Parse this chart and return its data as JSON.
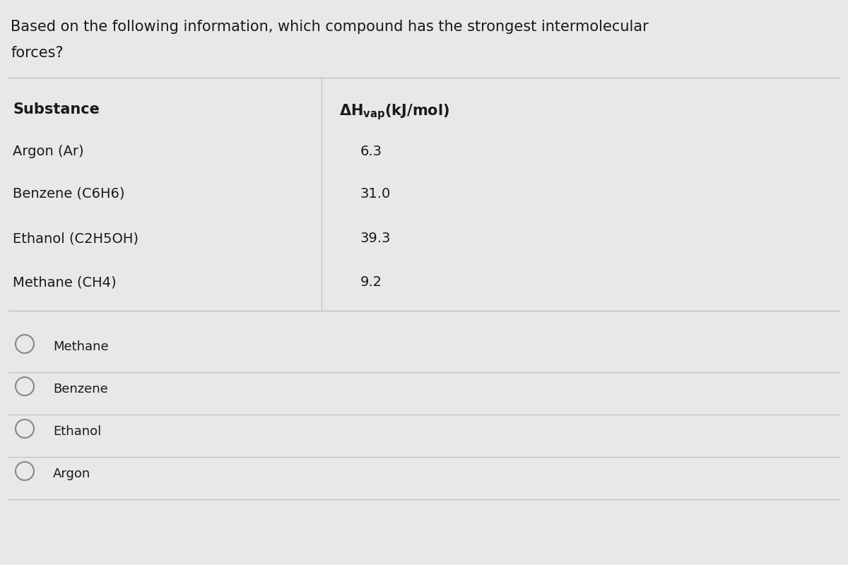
{
  "question": "Based on the following information, which compound has the strongest intermolecular\nforces?",
  "col1_header": "Substance",
  "col2_header": "ΔHᵣₐₚ(kJ/mol)",
  "col2_header_display": "ΔH_vap(kJ/mol)",
  "substances": [
    "Argon (Ar)",
    "Benzene (C6H6)",
    "Ethanol (C2H5OH)",
    "Methane (CH4)"
  ],
  "values": [
    "6.3",
    "31.0",
    "39.3",
    "9.2"
  ],
  "options": [
    "Methane",
    "Benzene",
    "Ethanol",
    "Argon"
  ],
  "bg_color": "#e8e8e8",
  "text_color": "#1a1a1a",
  "line_color": "#c0c0c0",
  "font_size_question": 15,
  "font_size_header": 15,
  "font_size_body": 14,
  "font_size_options": 13
}
